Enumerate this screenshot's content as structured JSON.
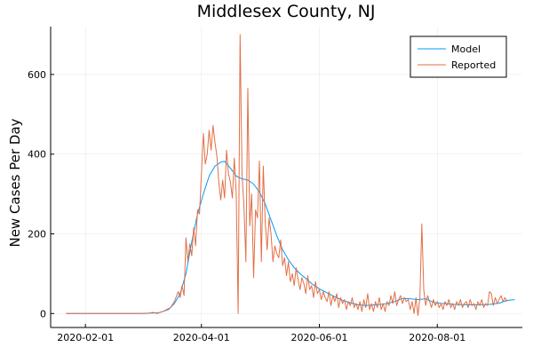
{
  "chart_data": {
    "type": "line",
    "title": "Middlesex County, NJ",
    "xlabel": "",
    "ylabel": "New Cases Per Day",
    "x_type": "date",
    "xlim": [
      "2020-01-14",
      "2020-09-14"
    ],
    "ylim": [
      -35,
      720
    ],
    "x_ticks": [
      "2020-02-01",
      "2020-04-01",
      "2020-06-01",
      "2020-08-01"
    ],
    "y_ticks": [
      0,
      200,
      400,
      600
    ],
    "grid": true,
    "legend_position": "top-right",
    "colors": {
      "Model": "#009AFA",
      "Reported": "#E26F46"
    },
    "series": [
      {
        "name": "Model",
        "points": [
          [
            "2020-01-22",
            0
          ],
          [
            "2020-03-01",
            0
          ],
          [
            "2020-03-10",
            2
          ],
          [
            "2020-03-15",
            10
          ],
          [
            "2020-03-18",
            25
          ],
          [
            "2020-03-21",
            50
          ],
          [
            "2020-03-24",
            100
          ],
          [
            "2020-03-27",
            180
          ],
          [
            "2020-03-30",
            250
          ],
          [
            "2020-04-02",
            300
          ],
          [
            "2020-04-05",
            345
          ],
          [
            "2020-04-08",
            370
          ],
          [
            "2020-04-11",
            380
          ],
          [
            "2020-04-13",
            382
          ],
          [
            "2020-04-16",
            365
          ],
          [
            "2020-04-19",
            345
          ],
          [
            "2020-04-22",
            338
          ],
          [
            "2020-04-25",
            335
          ],
          [
            "2020-04-28",
            325
          ],
          [
            "2020-05-01",
            305
          ],
          [
            "2020-05-04",
            275
          ],
          [
            "2020-05-07",
            235
          ],
          [
            "2020-05-10",
            195
          ],
          [
            "2020-05-13",
            160
          ],
          [
            "2020-05-16",
            135
          ],
          [
            "2020-05-19",
            115
          ],
          [
            "2020-05-22",
            100
          ],
          [
            "2020-05-25",
            88
          ],
          [
            "2020-05-28",
            75
          ],
          [
            "2020-06-01",
            62
          ],
          [
            "2020-06-05",
            52
          ],
          [
            "2020-06-09",
            42
          ],
          [
            "2020-06-13",
            33
          ],
          [
            "2020-06-17",
            27
          ],
          [
            "2020-06-21",
            22
          ],
          [
            "2020-06-25",
            20
          ],
          [
            "2020-07-01",
            22
          ],
          [
            "2020-07-06",
            25
          ],
          [
            "2020-07-10",
            30
          ],
          [
            "2020-07-14",
            38
          ],
          [
            "2020-07-18",
            37
          ],
          [
            "2020-07-22",
            35
          ],
          [
            "2020-07-26",
            37
          ],
          [
            "2020-07-30",
            28
          ],
          [
            "2020-08-04",
            25
          ],
          [
            "2020-08-10",
            23
          ],
          [
            "2020-08-16",
            22
          ],
          [
            "2020-08-22",
            22
          ],
          [
            "2020-08-28",
            23
          ],
          [
            "2020-09-02",
            26
          ],
          [
            "2020-09-06",
            33
          ],
          [
            "2020-09-10",
            35
          ]
        ]
      },
      {
        "name": "Reported",
        "points": [
          [
            "2020-01-22",
            0
          ],
          [
            "2020-03-04",
            0
          ],
          [
            "2020-03-07",
            3
          ],
          [
            "2020-03-09",
            0
          ],
          [
            "2020-03-12",
            5
          ],
          [
            "2020-03-14",
            10
          ],
          [
            "2020-03-16",
            15
          ],
          [
            "2020-03-18",
            30
          ],
          [
            "2020-03-20",
            55
          ],
          [
            "2020-03-21",
            40
          ],
          [
            "2020-03-22",
            70
          ],
          [
            "2020-03-23",
            45
          ],
          [
            "2020-03-24",
            190
          ],
          [
            "2020-03-25",
            130
          ],
          [
            "2020-03-26",
            175
          ],
          [
            "2020-03-27",
            145
          ],
          [
            "2020-03-28",
            215
          ],
          [
            "2020-03-29",
            170
          ],
          [
            "2020-03-30",
            260
          ],
          [
            "2020-03-31",
            250
          ],
          [
            "2020-04-01",
            350
          ],
          [
            "2020-04-02",
            452
          ],
          [
            "2020-04-03",
            375
          ],
          [
            "2020-04-04",
            400
          ],
          [
            "2020-04-05",
            460
          ],
          [
            "2020-04-06",
            410
          ],
          [
            "2020-04-07",
            472
          ],
          [
            "2020-04-08",
            430
          ],
          [
            "2020-04-09",
            395
          ],
          [
            "2020-04-10",
            330
          ],
          [
            "2020-04-11",
            285
          ],
          [
            "2020-04-12",
            335
          ],
          [
            "2020-04-13",
            290
          ],
          [
            "2020-04-14",
            410
          ],
          [
            "2020-04-15",
            350
          ],
          [
            "2020-04-16",
            330
          ],
          [
            "2020-04-17",
            290
          ],
          [
            "2020-04-18",
            390
          ],
          [
            "2020-04-19",
            300
          ],
          [
            "2020-04-20",
            0
          ],
          [
            "2020-04-21",
            700
          ],
          [
            "2020-04-22",
            350
          ],
          [
            "2020-04-23",
            270
          ],
          [
            "2020-04-24",
            130
          ],
          [
            "2020-04-25",
            565
          ],
          [
            "2020-04-26",
            220
          ],
          [
            "2020-04-27",
            300
          ],
          [
            "2020-04-28",
            90
          ],
          [
            "2020-04-29",
            260
          ],
          [
            "2020-04-30",
            240
          ],
          [
            "2020-05-01",
            383
          ],
          [
            "2020-05-02",
            130
          ],
          [
            "2020-05-03",
            370
          ],
          [
            "2020-05-04",
            230
          ],
          [
            "2020-05-05",
            160
          ],
          [
            "2020-05-06",
            240
          ],
          [
            "2020-05-07",
            200
          ],
          [
            "2020-05-08",
            130
          ],
          [
            "2020-05-09",
            170
          ],
          [
            "2020-05-10",
            150
          ],
          [
            "2020-05-11",
            140
          ],
          [
            "2020-05-12",
            185
          ],
          [
            "2020-05-13",
            120
          ],
          [
            "2020-05-14",
            140
          ],
          [
            "2020-05-15",
            95
          ],
          [
            "2020-05-16",
            130
          ],
          [
            "2020-05-17",
            80
          ],
          [
            "2020-05-18",
            100
          ],
          [
            "2020-05-19",
            70
          ],
          [
            "2020-05-20",
            115
          ],
          [
            "2020-05-21",
            85
          ],
          [
            "2020-05-22",
            60
          ],
          [
            "2020-05-23",
            90
          ],
          [
            "2020-05-24",
            75
          ],
          [
            "2020-05-25",
            50
          ],
          [
            "2020-05-26",
            95
          ],
          [
            "2020-05-27",
            60
          ],
          [
            "2020-05-28",
            70
          ],
          [
            "2020-05-29",
            40
          ],
          [
            "2020-05-30",
            80
          ],
          [
            "2020-05-31",
            50
          ],
          [
            "2020-06-01",
            60
          ],
          [
            "2020-06-02",
            35
          ],
          [
            "2020-06-03",
            55
          ],
          [
            "2020-06-04",
            40
          ],
          [
            "2020-06-05",
            30
          ],
          [
            "2020-06-06",
            55
          ],
          [
            "2020-06-07",
            20
          ],
          [
            "2020-06-08",
            45
          ],
          [
            "2020-06-09",
            30
          ],
          [
            "2020-06-10",
            50
          ],
          [
            "2020-06-11",
            15
          ],
          [
            "2020-06-12",
            40
          ],
          [
            "2020-06-13",
            25
          ],
          [
            "2020-06-14",
            35
          ],
          [
            "2020-06-15",
            10
          ],
          [
            "2020-06-16",
            30
          ],
          [
            "2020-06-17",
            20
          ],
          [
            "2020-06-18",
            40
          ],
          [
            "2020-06-19",
            15
          ],
          [
            "2020-06-20",
            25
          ],
          [
            "2020-06-21",
            10
          ],
          [
            "2020-06-22",
            30
          ],
          [
            "2020-06-23",
            5
          ],
          [
            "2020-06-24",
            35
          ],
          [
            "2020-06-25",
            15
          ],
          [
            "2020-06-26",
            50
          ],
          [
            "2020-06-27",
            10
          ],
          [
            "2020-06-28",
            25
          ],
          [
            "2020-06-29",
            5
          ],
          [
            "2020-06-30",
            30
          ],
          [
            "2020-07-01",
            15
          ],
          [
            "2020-07-02",
            40
          ],
          [
            "2020-07-03",
            10
          ],
          [
            "2020-07-04",
            25
          ],
          [
            "2020-07-05",
            5
          ],
          [
            "2020-07-06",
            30
          ],
          [
            "2020-07-07",
            20
          ],
          [
            "2020-07-08",
            45
          ],
          [
            "2020-07-09",
            25
          ],
          [
            "2020-07-10",
            55
          ],
          [
            "2020-07-11",
            20
          ],
          [
            "2020-07-12",
            35
          ],
          [
            "2020-07-13",
            45
          ],
          [
            "2020-07-14",
            25
          ],
          [
            "2020-07-15",
            40
          ],
          [
            "2020-07-16",
            30
          ],
          [
            "2020-07-17",
            35
          ],
          [
            "2020-07-18",
            10
          ],
          [
            "2020-07-19",
            30
          ],
          [
            "2020-07-20",
            0
          ],
          [
            "2020-07-21",
            40
          ],
          [
            "2020-07-22",
            -5
          ],
          [
            "2020-07-23",
            40
          ],
          [
            "2020-07-24",
            225
          ],
          [
            "2020-07-25",
            60
          ],
          [
            "2020-07-26",
            20
          ],
          [
            "2020-07-27",
            45
          ],
          [
            "2020-07-28",
            30
          ],
          [
            "2020-07-29",
            15
          ],
          [
            "2020-07-30",
            35
          ],
          [
            "2020-07-31",
            20
          ],
          [
            "2020-08-01",
            30
          ],
          [
            "2020-08-02",
            15
          ],
          [
            "2020-08-03",
            25
          ],
          [
            "2020-08-04",
            10
          ],
          [
            "2020-08-05",
            30
          ],
          [
            "2020-08-06",
            20
          ],
          [
            "2020-08-07",
            35
          ],
          [
            "2020-08-08",
            15
          ],
          [
            "2020-08-09",
            25
          ],
          [
            "2020-08-10",
            10
          ],
          [
            "2020-08-11",
            30
          ],
          [
            "2020-08-12",
            20
          ],
          [
            "2020-08-13",
            35
          ],
          [
            "2020-08-14",
            15
          ],
          [
            "2020-08-15",
            25
          ],
          [
            "2020-08-16",
            30
          ],
          [
            "2020-08-17",
            15
          ],
          [
            "2020-08-18",
            35
          ],
          [
            "2020-08-19",
            20
          ],
          [
            "2020-08-20",
            25
          ],
          [
            "2020-08-21",
            10
          ],
          [
            "2020-08-22",
            30
          ],
          [
            "2020-08-23",
            20
          ],
          [
            "2020-08-24",
            35
          ],
          [
            "2020-08-25",
            15
          ],
          [
            "2020-08-26",
            25
          ],
          [
            "2020-08-27",
            20
          ],
          [
            "2020-08-28",
            55
          ],
          [
            "2020-08-29",
            50
          ],
          [
            "2020-08-30",
            20
          ],
          [
            "2020-08-31",
            40
          ],
          [
            "2020-09-01",
            25
          ],
          [
            "2020-09-02",
            35
          ],
          [
            "2020-09-03",
            45
          ],
          [
            "2020-09-04",
            30
          ],
          [
            "2020-09-05",
            40
          ],
          [
            "2020-09-06",
            30
          ]
        ]
      }
    ]
  }
}
